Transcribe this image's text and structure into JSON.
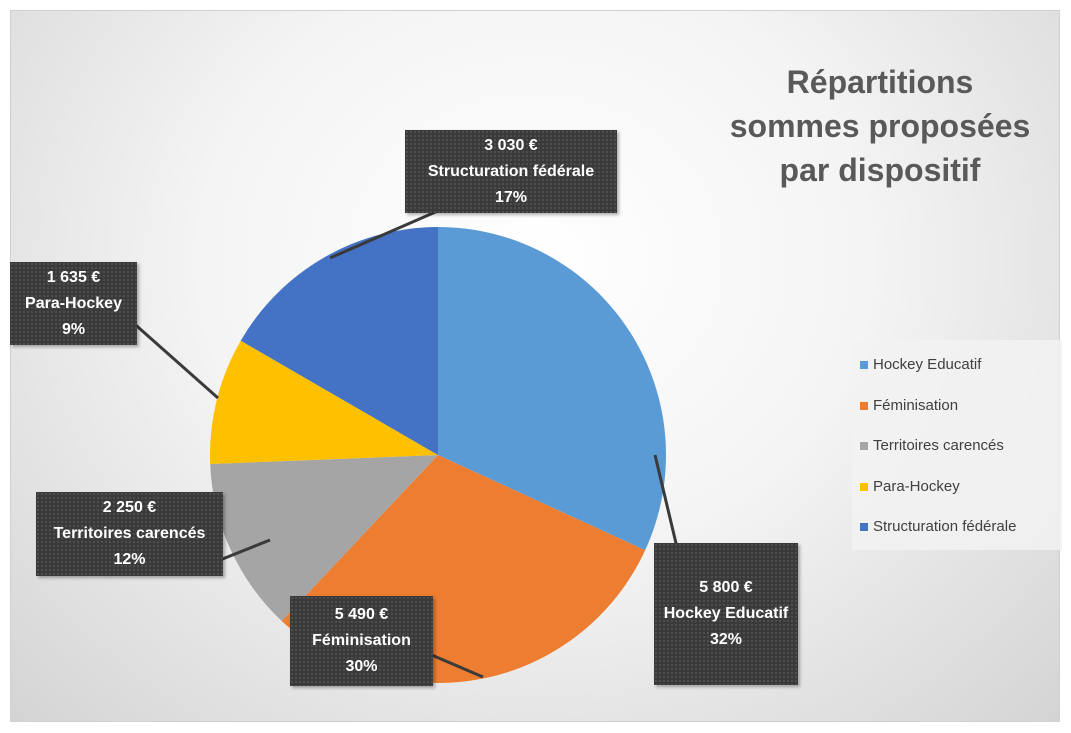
{
  "chart_data": {
    "type": "pie",
    "title": "Répartitions sommes proposées par dispositif",
    "categories": [
      "Hockey Educatif",
      "Féminisation",
      "Territoires carencés",
      "Para-Hockey",
      "Structuration fédérale"
    ],
    "values": [
      5800,
      5490,
      2250,
      1635,
      3030
    ],
    "value_labels": [
      "5 800 €",
      "5 490 €",
      "2 250 €",
      "1 635 €",
      "3 030 €"
    ],
    "percentages": [
      {
        "value": 32,
        "label": "32%"
      },
      {
        "value": 30,
        "label": "30%"
      },
      {
        "value": 12,
        "label": "12%"
      },
      {
        "value": 9,
        "label": "9%"
      },
      {
        "value": 17,
        "label": "17%"
      }
    ],
    "colors": [
      "#5b9bd5",
      "#ed7d31",
      "#a5a5a5",
      "#ffc000",
      "#4472c4"
    ],
    "legend": "right"
  }
}
